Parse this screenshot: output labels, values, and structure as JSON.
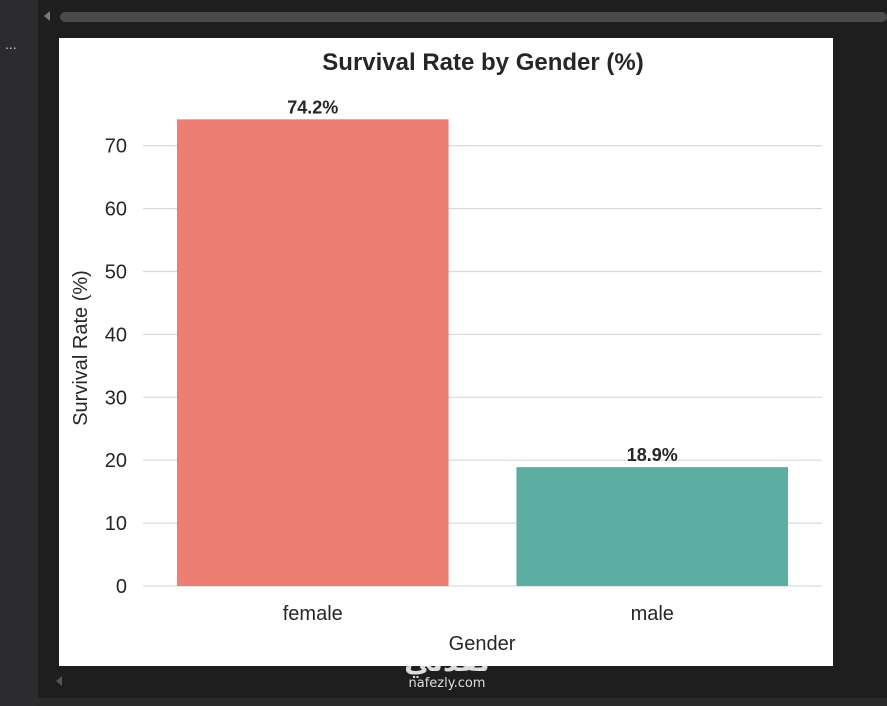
{
  "window": {
    "gutter_dots": "...",
    "watermark_arabic": "نفذلي",
    "watermark_latin": "nafezly.com"
  },
  "colors": {
    "female": "#ED7E74",
    "male": "#5CAEA2",
    "grid": "#d9d9d9",
    "text": "#262626"
  },
  "chart_data": {
    "type": "bar",
    "title": "Survival Rate by Gender (%)",
    "xlabel": "Gender",
    "ylabel": "Survival Rate (%)",
    "categories": [
      "female",
      "male"
    ],
    "values": [
      74.2,
      18.9
    ],
    "data_labels": [
      "74.2%",
      "18.9%"
    ],
    "yticks": [
      0,
      10,
      20,
      30,
      40,
      50,
      60,
      70
    ],
    "ylim": [
      0,
      76
    ],
    "grid": true,
    "legend": false
  }
}
